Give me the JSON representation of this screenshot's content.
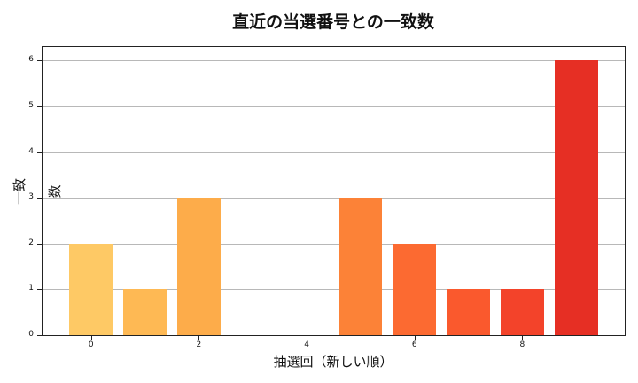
{
  "chart_data": {
    "type": "bar",
    "title": "直近の当選番号との一致数",
    "xlabel": "抽選回（新しい順）",
    "ylabel": "一致数",
    "x": [
      0,
      1,
      2,
      3,
      4,
      5,
      6,
      7,
      8,
      9
    ],
    "values": [
      2,
      1,
      3,
      0,
      0,
      3,
      2,
      1,
      1,
      6
    ],
    "colors": [
      "#fec965",
      "#feb954",
      "#fdac4a",
      "#fd9a42",
      "#fd8c3c",
      "#fc8237",
      "#fc6a31",
      "#fa592d",
      "#f3432a",
      "#e62f24"
    ],
    "xticks": [
      "0",
      "2",
      "4",
      "6",
      "8"
    ],
    "yticks": [
      "0",
      "1",
      "2",
      "3",
      "4",
      "5",
      "6"
    ],
    "xlim": [
      -0.9,
      9.9
    ],
    "ylim": [
      0,
      6.3
    ],
    "grid": "y",
    "legend": null
  }
}
